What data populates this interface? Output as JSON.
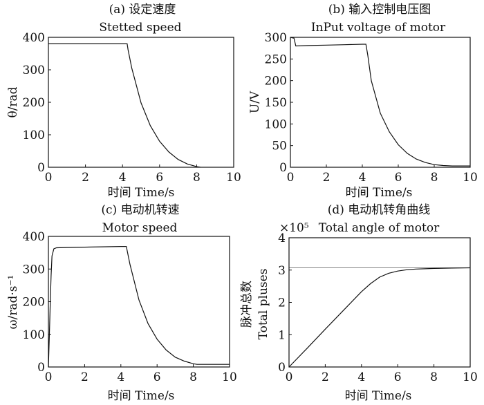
{
  "chart_data": [
    {
      "id": "a",
      "type": "line",
      "title_cn": "(a) 设定速度",
      "title_en": "Stetted speed",
      "xlabel": "时间 Time/s",
      "ylabel": "θ/rad",
      "xlim": [
        0,
        10
      ],
      "ylim": [
        0,
        400
      ],
      "xticks": [
        0,
        2,
        4,
        6,
        8,
        10
      ],
      "yticks": [
        0,
        100,
        200,
        300,
        400
      ],
      "x": [
        0,
        4.25,
        4.3,
        4.5,
        5,
        5.5,
        6,
        6.5,
        7,
        7.5,
        8.0,
        8.2
      ],
      "y": [
        380,
        380,
        362,
        305,
        198,
        128,
        80,
        47,
        24,
        10,
        2,
        0
      ]
    },
    {
      "id": "b",
      "type": "line",
      "title_cn": "(b) 输入控制电压图",
      "title_en": "InPut voltage of motor",
      "xlabel": "时间 Time/s",
      "ylabel": "U/V",
      "xlim": [
        0,
        10
      ],
      "ylim": [
        0,
        300
      ],
      "xticks": [
        0,
        2,
        4,
        6,
        8,
        10
      ],
      "yticks": [
        0,
        50,
        100,
        150,
        200,
        250,
        300
      ],
      "x": [
        0,
        0.2,
        0.3,
        1,
        2,
        3,
        4,
        4.2,
        4.3,
        4.5,
        5,
        5.5,
        6,
        6.5,
        7,
        7.5,
        8,
        8.5,
        9,
        9.5,
        10
      ],
      "y": [
        300,
        298,
        280,
        281,
        282,
        283,
        284,
        284,
        260,
        200,
        125,
        82,
        52,
        32,
        19,
        11,
        6,
        4,
        3,
        3,
        3
      ]
    },
    {
      "id": "c",
      "type": "line",
      "title_cn": "(c) 电动机转速",
      "title_en": "Motor speed",
      "xlabel": "时间 Time/s",
      "ylabel": "ω/rad·s⁻¹",
      "xlim": [
        0,
        10
      ],
      "ylim": [
        0,
        400
      ],
      "xticks": [
        0,
        2,
        4,
        6,
        8,
        10
      ],
      "yticks": [
        0,
        100,
        200,
        300,
        400
      ],
      "x": [
        0,
        0.05,
        0.1,
        0.15,
        0.2,
        0.3,
        0.45,
        1,
        2,
        3,
        4,
        4.3,
        4.5,
        5,
        5.5,
        6,
        6.5,
        7,
        7.5,
        8,
        8.2,
        9,
        10
      ],
      "y": [
        0,
        90,
        190,
        280,
        340,
        362,
        365,
        366,
        367,
        368,
        369,
        369,
        315,
        205,
        133,
        85,
        52,
        30,
        18,
        10,
        8,
        8,
        8
      ]
    },
    {
      "id": "d",
      "type": "line",
      "title_cn": "(d) 电动机转角曲线",
      "title_en": "Total angle of motor",
      "exponent_label": "×10⁵",
      "xlabel": "时间 Time/s",
      "ylabel_cn": "脉冲总数",
      "ylabel_en": "Total pluses",
      "xlim": [
        0,
        10
      ],
      "ylim": [
        0,
        4
      ],
      "xticks": [
        0,
        2,
        4,
        6,
        8,
        10
      ],
      "yticks": [
        0,
        1,
        2,
        3,
        4
      ],
      "reference_y": 3.07,
      "x": [
        0,
        1,
        2,
        3,
        4,
        4.5,
        5,
        5.5,
        6,
        6.5,
        7,
        7.5,
        8,
        9,
        10
      ],
      "y": [
        0,
        0.58,
        1.17,
        1.75,
        2.33,
        2.58,
        2.78,
        2.9,
        2.97,
        3.01,
        3.03,
        3.04,
        3.05,
        3.06,
        3.07
      ]
    }
  ]
}
